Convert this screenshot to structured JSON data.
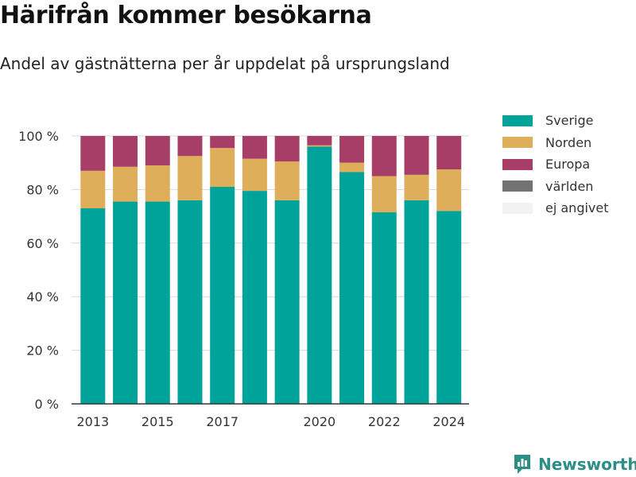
{
  "title": "Härifrån kommer besökarna",
  "subtitle": "Andel av gästnätterna per år uppdelat på ursprungsland",
  "brand": {
    "name": "Newsworthy",
    "color": "#2b8f86"
  },
  "chart_data": {
    "type": "bar",
    "stacked": true,
    "categories": [
      "2013",
      "2014",
      "2015",
      "2016",
      "2017",
      "2018",
      "2019",
      "2020",
      "2021",
      "2022",
      "2023",
      "2024"
    ],
    "x_tick_labels": [
      "2013",
      "",
      "2015",
      "",
      "2017",
      "",
      "",
      "2020",
      "",
      "2022",
      "",
      "2024"
    ],
    "y_ticks": [
      "0 %",
      "20 %",
      "40 %",
      "60 %",
      "80 %",
      "100 %"
    ],
    "ylim": [
      0,
      100
    ],
    "grid": true,
    "legend_position": "right",
    "series": [
      {
        "name": "Sverige",
        "color": "#00a39a",
        "values": [
          73,
          75.5,
          75.5,
          76,
          81,
          79.5,
          76,
          96,
          86.5,
          71.5,
          76,
          72
        ]
      },
      {
        "name": "Norden",
        "color": "#dfae5a",
        "values": [
          14,
          13,
          13.5,
          16.5,
          14.5,
          12,
          14.5,
          0.5,
          3.5,
          13.5,
          9.5,
          15.5
        ]
      },
      {
        "name": "Europa",
        "color": "#a73e67",
        "values": [
          13,
          11.5,
          11,
          7.5,
          4.5,
          8.5,
          9.5,
          3.5,
          10,
          15,
          14.5,
          12.5
        ]
      },
      {
        "name": "världen",
        "color": "#737373",
        "values": [
          0,
          0,
          0,
          0,
          0,
          0,
          0,
          0,
          0,
          0,
          0,
          0
        ]
      },
      {
        "name": "ej angivet",
        "color": "#f2f2f2",
        "values": [
          0,
          0,
          0,
          0,
          0,
          0,
          0,
          0,
          0,
          0,
          0,
          0
        ]
      }
    ]
  }
}
